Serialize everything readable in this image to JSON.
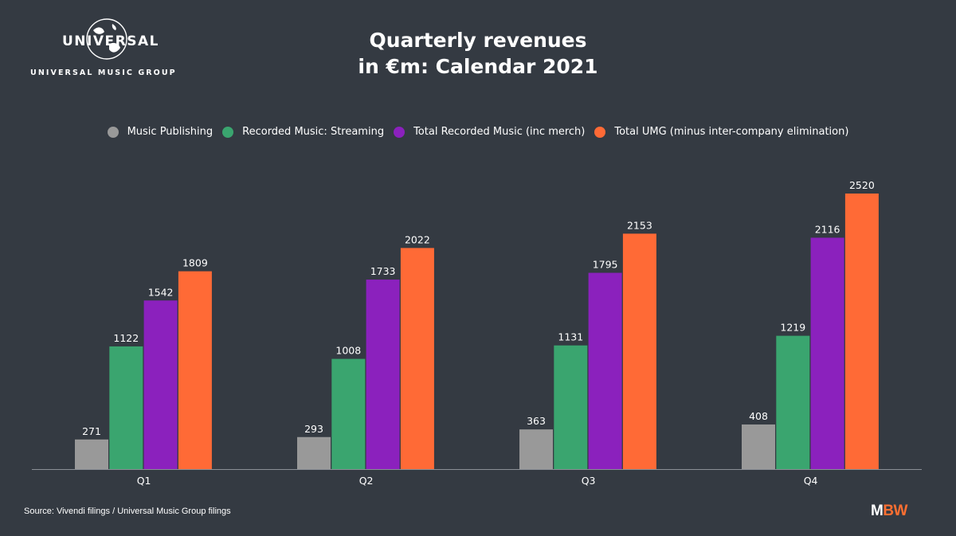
{
  "logo": {
    "wordmark": "UNIVERSAL",
    "tagline": "UNIVERSAL MUSIC GROUP"
  },
  "footer": {
    "source": "Source: Vivendi filings / Universal Music Group filings",
    "brand_m": "M",
    "brand_bw": "BW"
  },
  "chart_data": {
    "type": "bar",
    "title_line1": "Quarterly revenues",
    "title_line2": "in €m: Calendar 2021",
    "categories": [
      "Q1",
      "Q2",
      "Q3",
      "Q4"
    ],
    "series": [
      {
        "name": "Music Publishing",
        "color": "#999999",
        "values": [
          271,
          293,
          363,
          408
        ]
      },
      {
        "name": "Recorded Music: Streaming",
        "color": "#3aa56f",
        "values": [
          1122,
          1008,
          1131,
          1219
        ]
      },
      {
        "name": "Total Recorded Music (inc merch)",
        "color": "#8b21bd",
        "values": [
          1542,
          1733,
          1795,
          2116
        ]
      },
      {
        "name": "Total UMG (minus inter-company elimination)",
        "color": "#ff6a36",
        "values": [
          1809,
          2022,
          2153,
          2520
        ]
      }
    ],
    "ylim": [
      0,
      2520
    ],
    "grid": false,
    "legend_position": "top-center",
    "data_labels": true
  }
}
